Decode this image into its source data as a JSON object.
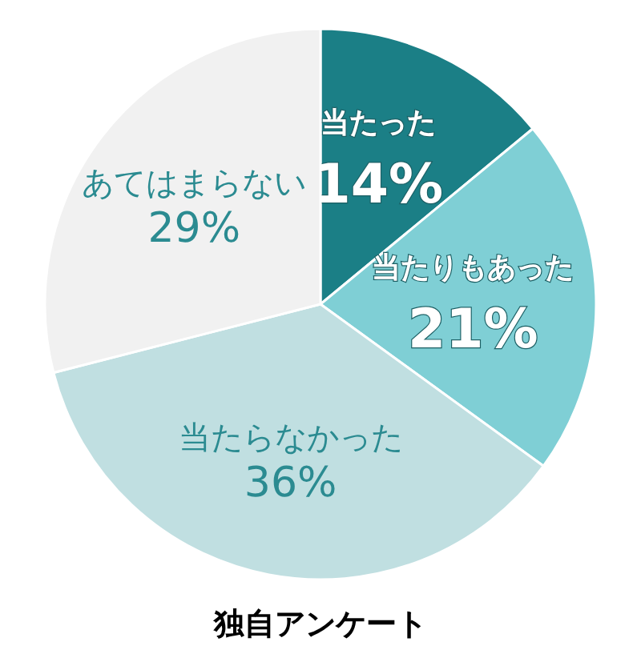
{
  "chart_data": {
    "type": "pie",
    "categories": [
      "当たった",
      "当たりもあった",
      "当たらなかった",
      "あてはまらない"
    ],
    "values": [
      14,
      21,
      36,
      29
    ],
    "colors": [
      "#1b7f86",
      "#7fcfd5",
      "#c0dfe1",
      "#f1f1f1"
    ],
    "value_labels": [
      "14%",
      "21%",
      "36%",
      "29%"
    ],
    "annotations": [
      "独自アンケート"
    ]
  }
}
